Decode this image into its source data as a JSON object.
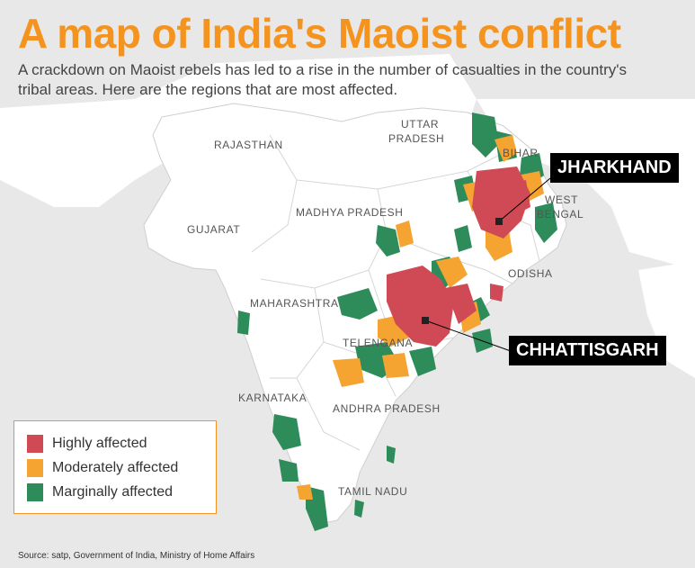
{
  "title": "A map of India's Maoist conflict",
  "subtitle": "A crackdown on Maoist rebels has led to a rise in the number of casualties in the country's tribal areas. Here are the regions that are most affected.",
  "colors": {
    "highly": "#d04a55",
    "moderately": "#f5a431",
    "marginally": "#2e8b5a",
    "land": "#ffffff",
    "sea": "#e8e8e8",
    "accent": "#f5931f"
  },
  "regions": {
    "uttar_pradesh_1": "UTTAR",
    "uttar_pradesh_2": "PRADESH",
    "rajasthan": "RAJASTHAN",
    "bihar": "BIHAR",
    "west_bengal_1": "WEST",
    "west_bengal_2": "BENGAL",
    "madhya_pradesh": "MADHYA PRADESH",
    "gujarat": "GUJARAT",
    "odisha": "ODISHA",
    "maharashtra": "MAHARASHTRA",
    "telengana": "TELENGANA",
    "karnataka": "KARNATAKA",
    "andhra_pradesh": "ANDHRA PRADESH",
    "tamil_nadu": "TAMIL NADU"
  },
  "callouts": {
    "jharkhand": "JHARKHAND",
    "chhattisgarh": "CHHATTISGARH"
  },
  "legend": {
    "highly": "Highly affected",
    "moderately": "Moderately affected",
    "marginally": "Marginally affected"
  },
  "source": "Source: satp, Government of India, Ministry of Home Affairs"
}
